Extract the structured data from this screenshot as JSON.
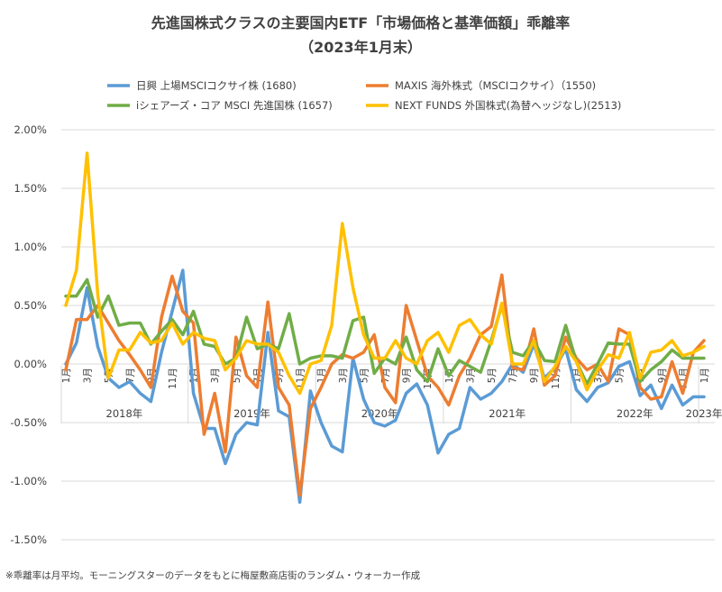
{
  "chart_data": {
    "type": "line",
    "title": "先進国株式クラスの主要国内ETF「市場価格と基準価額」乖離率",
    "subtitle": "（2023年1月末）",
    "ylabel": "",
    "xlabel": "",
    "ylim": [
      -1.5,
      2.0
    ],
    "yticks": [
      "2.00%",
      "1.50%",
      "1.00%",
      "0.50%",
      "0.00%",
      "-0.50%",
      "-1.00%",
      "-1.50%"
    ],
    "ytick_values": [
      2.0,
      1.5,
      1.0,
      0.5,
      0.0,
      -0.5,
      -1.0,
      -1.5
    ],
    "grid": true,
    "legend_position": "top",
    "month_labels": [
      {
        "index": 0,
        "label": "1月"
      },
      {
        "index": 2,
        "label": "3月"
      },
      {
        "index": 4,
        "label": "5月"
      },
      {
        "index": 6,
        "label": "7月"
      },
      {
        "index": 8,
        "label": "9月"
      },
      {
        "index": 10,
        "label": "11月"
      },
      {
        "index": 12,
        "label": "1月"
      },
      {
        "index": 14,
        "label": "3月"
      },
      {
        "index": 16,
        "label": "5月"
      },
      {
        "index": 18,
        "label": "7月"
      },
      {
        "index": 20,
        "label": "9月"
      },
      {
        "index": 22,
        "label": "11月"
      },
      {
        "index": 24,
        "label": "1月"
      },
      {
        "index": 26,
        "label": "3月"
      },
      {
        "index": 28,
        "label": "5月"
      },
      {
        "index": 30,
        "label": "7月"
      },
      {
        "index": 32,
        "label": "9月"
      },
      {
        "index": 34,
        "label": "11月"
      },
      {
        "index": 36,
        "label": "1月"
      },
      {
        "index": 38,
        "label": "3月"
      },
      {
        "index": 40,
        "label": "5月"
      },
      {
        "index": 42,
        "label": "7月"
      },
      {
        "index": 44,
        "label": "9月"
      },
      {
        "index": 46,
        "label": "11月"
      },
      {
        "index": 48,
        "label": "1月"
      },
      {
        "index": 50,
        "label": "3月"
      },
      {
        "index": 52,
        "label": "5月"
      },
      {
        "index": 54,
        "label": "7月"
      },
      {
        "index": 56,
        "label": "9月"
      },
      {
        "index": 58,
        "label": "11月"
      },
      {
        "index": 60,
        "label": "1月"
      }
    ],
    "years": [
      {
        "label": "2018年",
        "start": 0,
        "end": 11
      },
      {
        "label": "2019年",
        "start": 12,
        "end": 23
      },
      {
        "label": "2020年",
        "start": 24,
        "end": 35
      },
      {
        "label": "2021年",
        "start": 36,
        "end": 47
      },
      {
        "label": "2022年",
        "start": 48,
        "end": 59
      },
      {
        "label": "2023年",
        "start": 60,
        "end": 60
      }
    ],
    "series": [
      {
        "name": "日興 上場MSCIコクサイ株 (1680)",
        "color": "#5b9bd5",
        "values": [
          0.0,
          0.18,
          0.65,
          0.15,
          -0.12,
          -0.2,
          -0.15,
          -0.25,
          -0.32,
          0.1,
          0.45,
          0.8,
          -0.25,
          -0.55,
          -0.55,
          -0.85,
          -0.6,
          -0.5,
          -0.52,
          0.27,
          -0.4,
          -0.45,
          -1.18,
          -0.23,
          -0.5,
          -0.7,
          -0.75,
          0.05,
          -0.3,
          -0.5,
          -0.53,
          -0.48,
          -0.25,
          -0.17,
          -0.35,
          -0.76,
          -0.6,
          -0.55,
          -0.2,
          -0.3,
          -0.25,
          -0.15,
          0.0,
          -0.07,
          0.17,
          -0.12,
          -0.03,
          0.13,
          -0.22,
          -0.32,
          -0.2,
          -0.16,
          -0.02,
          0.02,
          -0.27,
          -0.18,
          -0.38,
          -0.18,
          -0.35,
          -0.28,
          -0.28
        ]
      },
      {
        "name": "MAXIS 海外株式（MSCIコクサイ）（1550)",
        "color": "#ed7d31",
        "values": [
          -0.05,
          0.38,
          0.38,
          0.5,
          0.35,
          0.2,
          0.08,
          -0.05,
          -0.2,
          0.4,
          0.75,
          0.45,
          0.35,
          -0.6,
          -0.25,
          -0.75,
          0.23,
          -0.1,
          -0.2,
          0.53,
          -0.2,
          -0.35,
          -1.12,
          -0.38,
          -0.2,
          0.0,
          0.08,
          0.05,
          0.1,
          0.25,
          -0.2,
          -0.33,
          0.5,
          0.2,
          -0.1,
          -0.2,
          -0.35,
          -0.1,
          0.05,
          0.25,
          0.32,
          0.76,
          -0.03,
          -0.05,
          0.3,
          -0.18,
          -0.1,
          0.23,
          0.05,
          -0.05,
          0.0,
          -0.15,
          0.3,
          0.25,
          -0.2,
          -0.3,
          -0.28,
          0.02,
          -0.25,
          0.1,
          0.2
        ]
      },
      {
        "name": "iシェアーズ・コア MSCI 先進国株 (1657)",
        "color": "#70ad47",
        "values": [
          0.58,
          0.58,
          0.72,
          0.4,
          0.58,
          0.33,
          0.35,
          0.35,
          0.17,
          0.28,
          0.38,
          0.25,
          0.45,
          0.17,
          0.15,
          0.0,
          0.05,
          0.4,
          0.13,
          0.17,
          0.13,
          0.43,
          0.0,
          0.05,
          0.07,
          0.07,
          0.05,
          0.37,
          0.4,
          -0.08,
          0.05,
          0.0,
          0.23,
          -0.05,
          -0.15,
          0.13,
          -0.1,
          0.03,
          -0.02,
          -0.07,
          0.2,
          0.5,
          0.1,
          0.07,
          0.2,
          0.03,
          0.02,
          0.33,
          0.02,
          -0.17,
          0.0,
          0.18,
          0.17,
          0.17,
          -0.15,
          -0.05,
          0.02,
          0.12,
          0.05,
          0.05,
          0.05
        ]
      },
      {
        "name": "NEXT FUNDS 外国株式(為替ヘッジなし)(2513)",
        "color": "#ffc000",
        "values": [
          0.5,
          0.8,
          1.8,
          0.6,
          -0.12,
          0.12,
          0.12,
          0.27,
          0.18,
          0.2,
          0.35,
          0.17,
          0.27,
          0.22,
          0.2,
          -0.05,
          0.05,
          0.2,
          0.17,
          0.17,
          0.1,
          -0.1,
          -0.25,
          0.0,
          0.03,
          0.33,
          1.2,
          0.65,
          0.25,
          0.05,
          0.05,
          0.2,
          0.05,
          0.0,
          0.2,
          0.27,
          0.1,
          0.33,
          0.38,
          0.25,
          0.17,
          0.52,
          0.0,
          0.0,
          0.2,
          -0.15,
          -0.02,
          0.15,
          0.02,
          -0.22,
          -0.05,
          0.08,
          0.05,
          0.27,
          -0.12,
          0.1,
          0.12,
          0.2,
          0.07,
          0.1,
          0.15
        ]
      }
    ],
    "footnote": "※乖離率は月平均。モーニングスターのデータをもとに梅屋敷商店街のランダム・ウォーカー作成"
  }
}
